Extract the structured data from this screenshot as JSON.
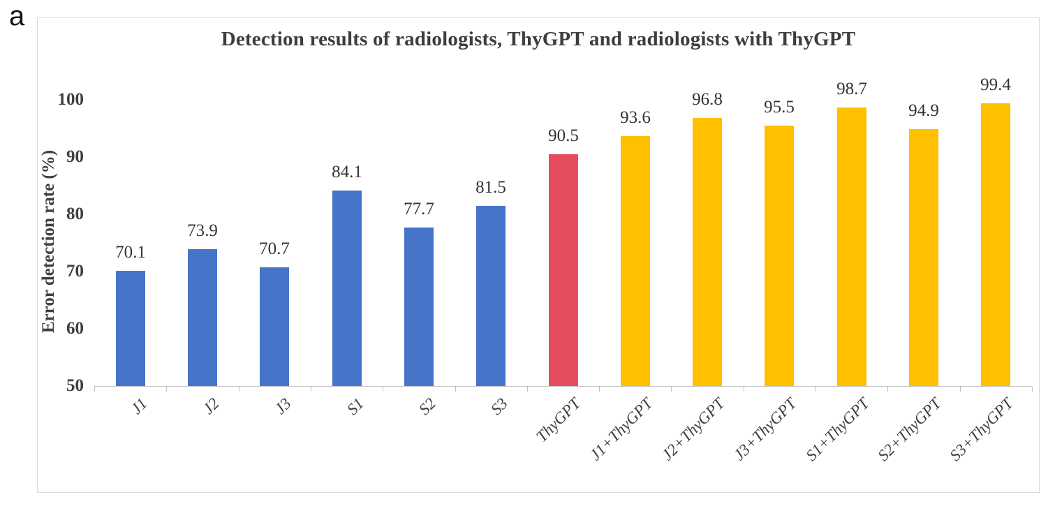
{
  "figure": {
    "panel_label": "a"
  },
  "chart_data": {
    "type": "bar",
    "title": "Detection results of radiologists, ThyGPT and radiologists with ThyGPT",
    "xlabel": "",
    "ylabel": "Error detection rate (%)",
    "ylim": [
      50,
      100
    ],
    "yticks": [
      50,
      60,
      70,
      80,
      90,
      100
    ],
    "grid": false,
    "legend_position": "none",
    "categories": [
      "J1",
      "J2",
      "J3",
      "S1",
      "S2",
      "S3",
      "ThyGPT",
      "J1+ThyGPT",
      "J2+ThyGPT",
      "J3+ThyGPT",
      "S1+ThyGPT",
      "S2+ThyGPT",
      "S3+ThyGPT"
    ],
    "values": [
      70.1,
      73.9,
      70.7,
      84.1,
      77.7,
      81.5,
      90.5,
      93.6,
      96.8,
      95.5,
      98.7,
      94.9,
      99.4
    ],
    "data_labels": [
      "70.1",
      "73.9",
      "70.7",
      "84.1",
      "77.7",
      "81.5",
      "90.5",
      "93.6",
      "96.8",
      "95.5",
      "98.7",
      "94.9",
      "99.4"
    ],
    "group_index": [
      0,
      0,
      0,
      0,
      0,
      0,
      1,
      2,
      2,
      2,
      2,
      2,
      2
    ],
    "groups": [
      {
        "name": "radiologists",
        "color": "#4674C9"
      },
      {
        "name": "ThyGPT",
        "color": "#E54D5D"
      },
      {
        "name": "radiologists with ThyGPT",
        "color": "#FFC000"
      }
    ],
    "axis_color": "#bfbfbf",
    "frame_border_color": "#d9d9d9",
    "text_color": "#404040"
  }
}
